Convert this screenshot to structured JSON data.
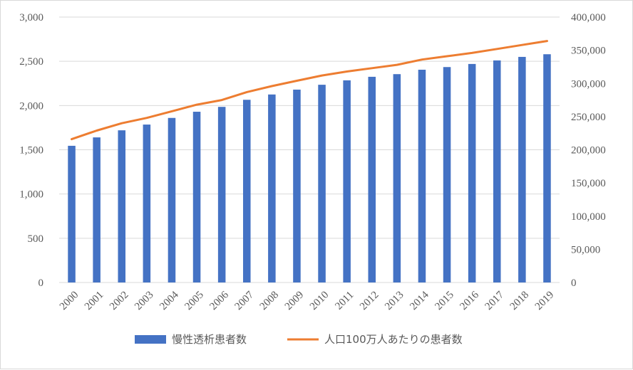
{
  "chart_data": {
    "type": "bar",
    "categories": [
      "2000",
      "2001",
      "2002",
      "2003",
      "2004",
      "2005",
      "2006",
      "2007",
      "2008",
      "2009",
      "2010",
      "2011",
      "2012",
      "2013",
      "2014",
      "2015",
      "2016",
      "2017",
      "2018",
      "2019"
    ],
    "series": [
      {
        "name": "慢性透析患者数",
        "type": "bar",
        "axis": "left",
        "color": "#4472C4",
        "values": [
          1545,
          1640,
          1720,
          1785,
          1860,
          1930,
          1985,
          2065,
          2125,
          2180,
          2235,
          2285,
          2325,
          2355,
          2405,
          2435,
          2470,
          2510,
          2550,
          2580
        ]
      },
      {
        "name": "人口100万人あたりの患者数",
        "type": "line",
        "axis": "right",
        "color": "#ED7D31",
        "values": [
          216000,
          229000,
          240000,
          248000,
          258000,
          268000,
          275000,
          287000,
          296000,
          304000,
          312000,
          318000,
          323000,
          328000,
          336000,
          341000,
          346000,
          352000,
          358000,
          364000
        ]
      }
    ],
    "y_left": {
      "min": 0,
      "max": 3000,
      "ticks": [
        "0",
        "500",
        "1,000",
        "1,500",
        "2,000",
        "2,500",
        "3,000"
      ]
    },
    "y_right": {
      "min": 0,
      "max": 400000,
      "ticks": [
        "0",
        "50,000",
        "100,000",
        "150,000",
        "200,000",
        "250,000",
        "300,000",
        "350,000",
        "400,000"
      ]
    },
    "grid": true,
    "legend_position": "bottom",
    "title": "",
    "xlabel": "",
    "ylabel": ""
  }
}
